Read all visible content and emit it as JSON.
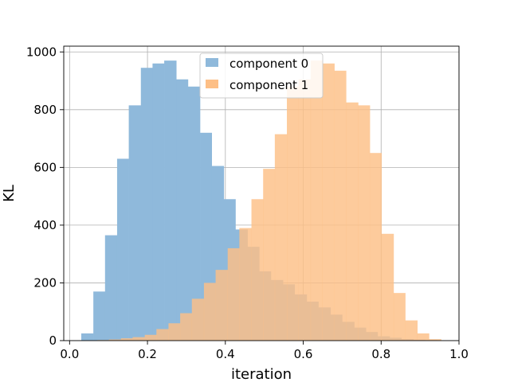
{
  "chart_data": {
    "type": "bar",
    "xlabel": "iteration",
    "ylabel": "KL",
    "xlim": [
      -0.015,
      1.0
    ],
    "ylim": [
      0,
      1020
    ],
    "xticks": [
      0.0,
      0.2,
      0.4,
      0.6,
      0.8,
      1.0
    ],
    "xtick_labels": [
      "0.0",
      "0.2",
      "0.4",
      "0.6",
      "0.8",
      "1.0"
    ],
    "yticks": [
      0,
      200,
      400,
      600,
      800,
      1000
    ],
    "ytick_labels": [
      "0",
      "200",
      "400",
      "600",
      "800",
      "1000"
    ],
    "grid": true,
    "legend_position": "top-center",
    "series": [
      {
        "name": "component 0",
        "color": "#8fb9db",
        "edges": [
          0.03,
          0.061,
          0.091,
          0.122,
          0.152,
          0.183,
          0.213,
          0.243,
          0.274,
          0.304,
          0.335,
          0.365,
          0.396,
          0.426,
          0.457,
          0.487,
          0.517,
          0.548,
          0.578,
          0.609,
          0.639,
          0.67,
          0.7,
          0.731,
          0.761,
          0.791,
          0.822,
          0.852,
          0.883,
          0.913,
          0.944
        ],
        "counts": [
          25,
          170,
          365,
          630,
          815,
          945,
          960,
          970,
          905,
          880,
          720,
          605,
          490,
          385,
          325,
          240,
          210,
          195,
          160,
          135,
          115,
          90,
          65,
          45,
          30,
          15,
          10,
          5,
          3,
          2
        ]
      },
      {
        "name": "component 1",
        "color": "#fdbf86",
        "edges": [
          0.04,
          0.071,
          0.101,
          0.132,
          0.162,
          0.193,
          0.223,
          0.254,
          0.284,
          0.314,
          0.345,
          0.375,
          0.406,
          0.436,
          0.467,
          0.497,
          0.527,
          0.558,
          0.588,
          0.619,
          0.649,
          0.68,
          0.71,
          0.741,
          0.771,
          0.801,
          0.832,
          0.862,
          0.893,
          0.923,
          0.954
        ],
        "counts": [
          1,
          2,
          4,
          8,
          12,
          20,
          40,
          60,
          95,
          145,
          200,
          245,
          320,
          390,
          490,
          595,
          715,
          880,
          905,
          970,
          960,
          935,
          825,
          815,
          650,
          370,
          165,
          70,
          25,
          5
        ]
      }
    ]
  }
}
